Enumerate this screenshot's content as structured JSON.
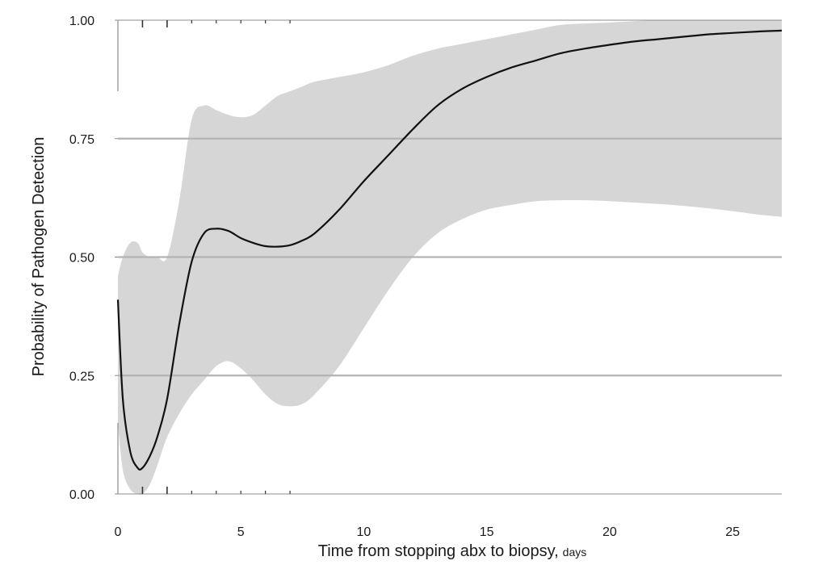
{
  "chart_data": {
    "type": "line",
    "title": "",
    "xlabel": "Time from stopping abx to biopsy,",
    "xlabel_unit": "days",
    "ylabel": "Probability of Pathogen Detection",
    "xlim": [
      0,
      27
    ],
    "ylim": [
      0,
      1
    ],
    "x_ticks": [
      0,
      5,
      10,
      15,
      20,
      25
    ],
    "x_tick_labels": [
      "0",
      "5",
      "10",
      "15",
      "20",
      "25"
    ],
    "y_ticks": [
      0,
      0.25,
      0.5,
      0.75,
      1
    ],
    "y_tick_labels": [
      "0.00",
      "0.25",
      "0.50",
      "0.75",
      "1.00"
    ],
    "horizontal_reference_lines": [
      0.25,
      0.5,
      0.75
    ],
    "rug_ticks": [
      1,
      2,
      3,
      4,
      5,
      6,
      7
    ],
    "colors": {
      "line": "#111111",
      "band": "#d6d6d6",
      "reference_lines": "#b3b3b3",
      "axes": "#8c8c8c"
    },
    "series": [
      {
        "x": [
          0,
          0.2,
          0.5,
          0.8,
          1,
          1.3,
          1.6,
          2,
          2.5,
          3,
          3.5,
          4,
          4.5,
          5,
          5.5,
          6,
          6.5,
          7,
          7.5,
          8,
          9,
          10,
          11,
          12,
          13,
          14,
          15,
          16,
          17,
          18,
          19,
          20,
          21,
          22,
          23,
          24,
          25,
          26,
          27
        ],
        "values": [
          0.41,
          0.2,
          0.09,
          0.055,
          0.055,
          0.08,
          0.12,
          0.2,
          0.36,
          0.49,
          0.55,
          0.56,
          0.555,
          0.54,
          0.53,
          0.523,
          0.522,
          0.525,
          0.535,
          0.55,
          0.6,
          0.66,
          0.715,
          0.77,
          0.82,
          0.855,
          0.88,
          0.9,
          0.915,
          0.93,
          0.94,
          0.948,
          0.955,
          0.96,
          0.965,
          0.97,
          0.973,
          0.976,
          0.978
        ],
        "lower": [
          0.15,
          0.05,
          0.01,
          0,
          0,
          0.02,
          0.06,
          0.12,
          0.17,
          0.21,
          0.24,
          0.27,
          0.28,
          0.265,
          0.24,
          0.21,
          0.19,
          0.185,
          0.19,
          0.21,
          0.27,
          0.35,
          0.43,
          0.5,
          0.55,
          0.58,
          0.6,
          0.61,
          0.618,
          0.62,
          0.62,
          0.618,
          0.615,
          0.612,
          0.608,
          0.603,
          0.597,
          0.59,
          0.585
        ],
        "upper": [
          0.46,
          0.5,
          0.53,
          0.53,
          0.51,
          0.5,
          0.5,
          0.5,
          0.62,
          0.79,
          0.82,
          0.81,
          0.8,
          0.795,
          0.8,
          0.82,
          0.84,
          0.85,
          0.86,
          0.87,
          0.88,
          0.89,
          0.905,
          0.925,
          0.94,
          0.95,
          0.96,
          0.97,
          0.98,
          0.99,
          0.993,
          0.995,
          0.998,
          1,
          1,
          1,
          1,
          1,
          1
        ]
      }
    ]
  }
}
